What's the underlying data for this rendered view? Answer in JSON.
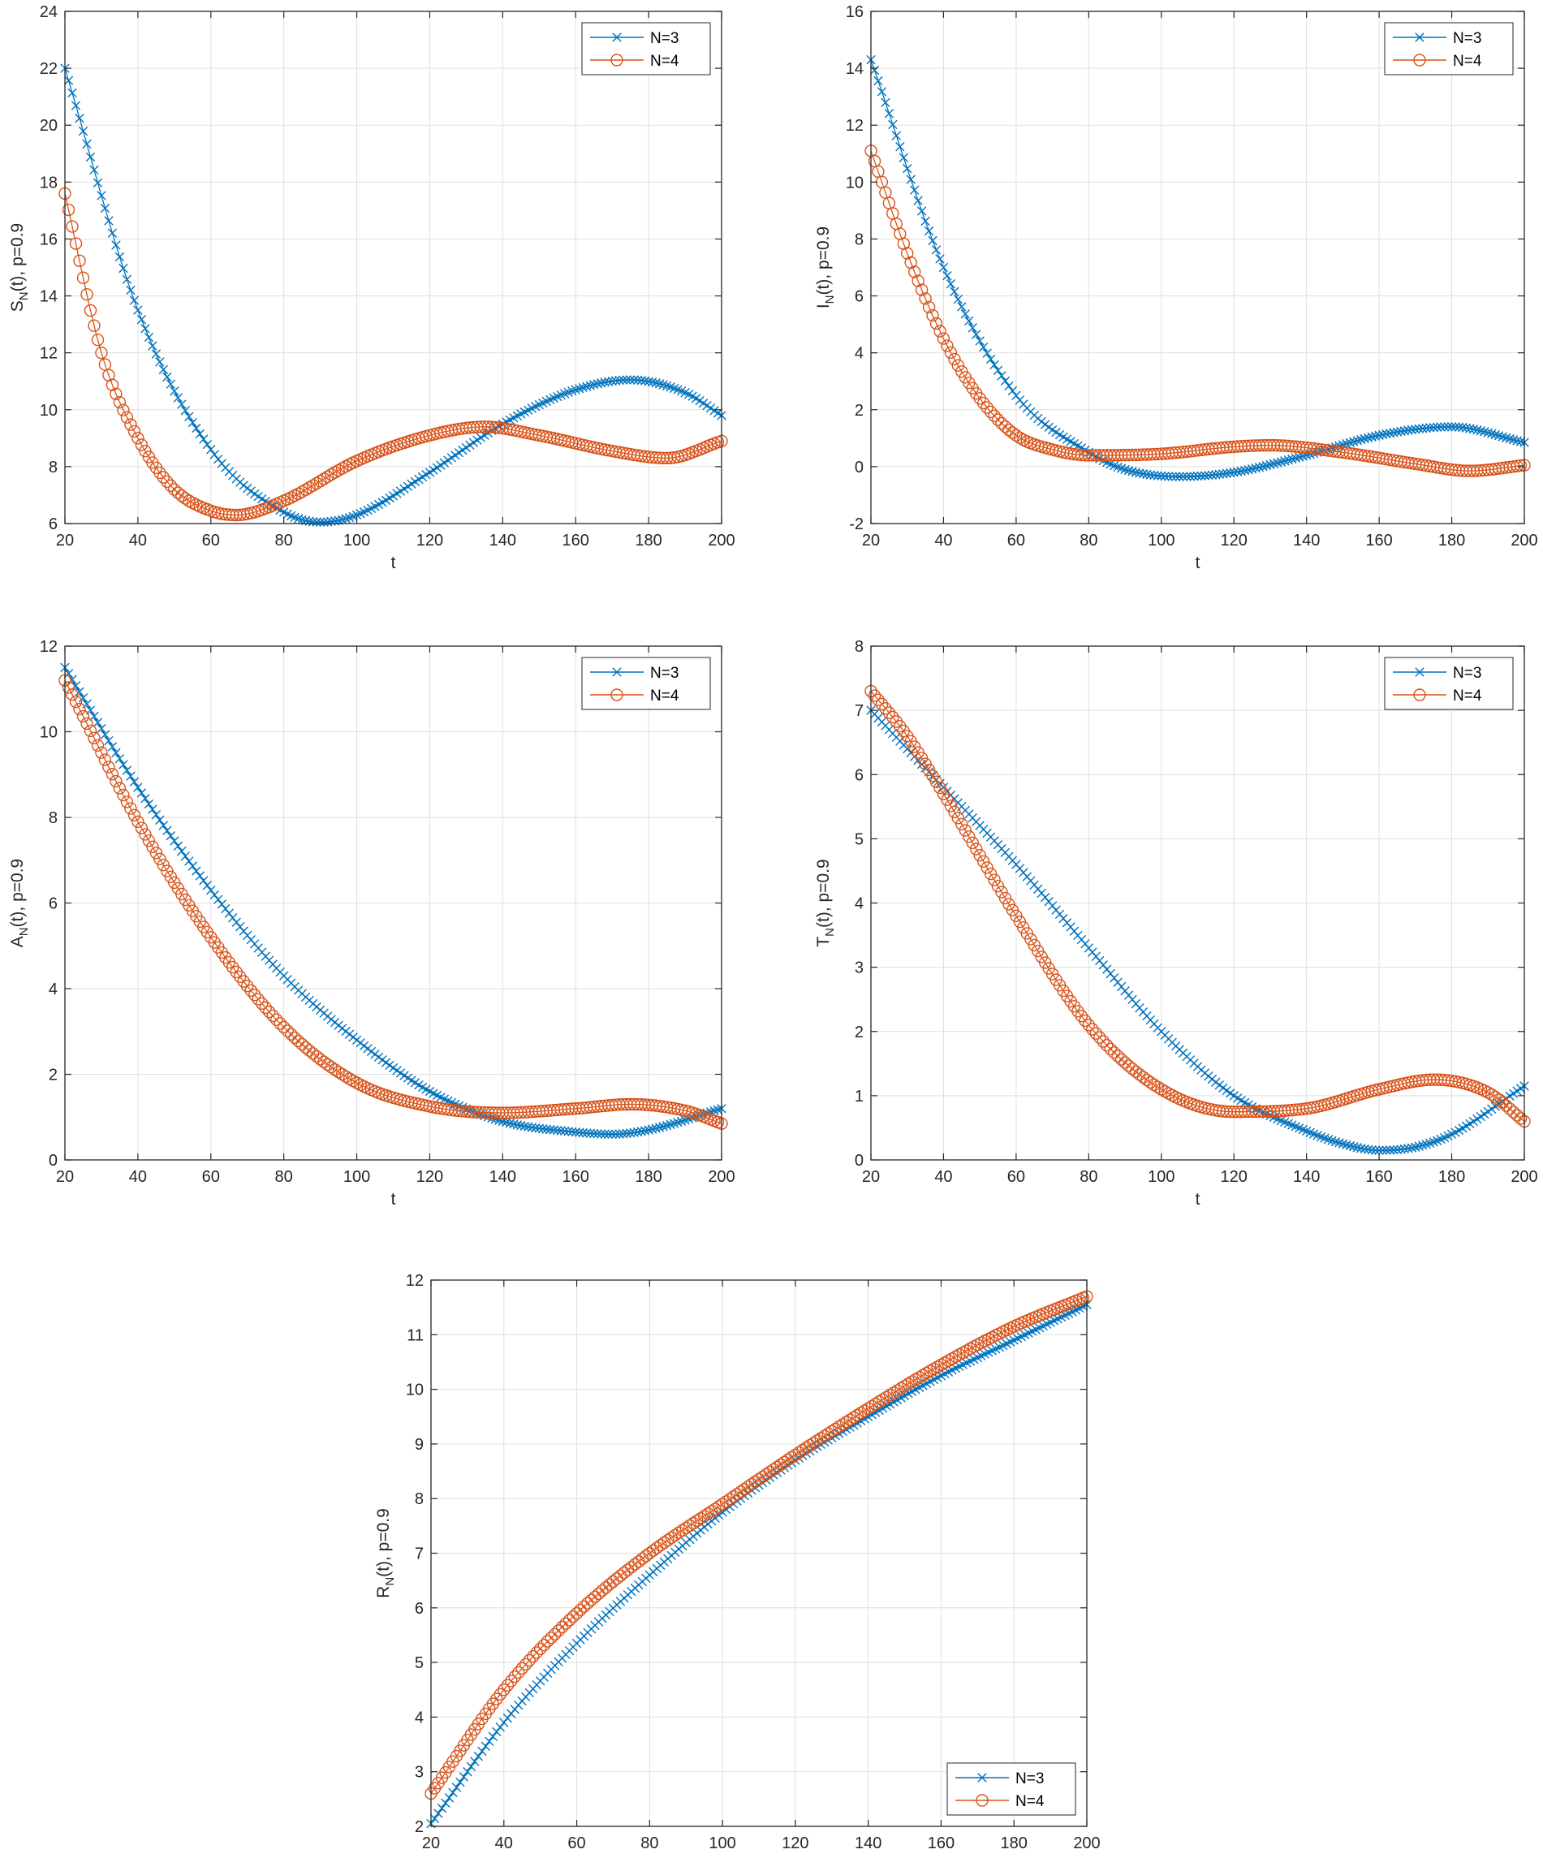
{
  "colors": {
    "n3": "#0072BD",
    "n4": "#D95319",
    "grid": "#dfdfdf",
    "axis": "#262626"
  },
  "chart_data": [
    {
      "id": "S",
      "type": "line",
      "ylabel": "S_N(t), p=0.9",
      "ylabel_main": "S",
      "ylabel_sub": "N",
      "ylabel_rest": "(t), p=0.9",
      "xlabel": "t",
      "xlim": [
        20,
        200
      ],
      "ylim": [
        6,
        24
      ],
      "xticks": [
        "20",
        "40",
        "60",
        "80",
        "100",
        "120",
        "140",
        "160",
        "180",
        "200"
      ],
      "yticks": [
        "6",
        "8",
        "10",
        "12",
        "14",
        "16",
        "18",
        "20",
        "22",
        "24"
      ],
      "grid": true,
      "legend_position": "top-right",
      "series": [
        {
          "name": "N=3",
          "marker": "x-mark",
          "x": [
            20,
            40,
            60,
            80,
            90,
            100,
            120,
            140,
            160,
            175,
            190,
            200
          ],
          "y": [
            22.0,
            13.5,
            8.6,
            6.4,
            6.05,
            6.3,
            7.8,
            9.5,
            10.7,
            11.05,
            10.6,
            9.8
          ]
        },
        {
          "name": "N=4",
          "marker": "circle",
          "x": [
            20,
            30,
            40,
            50,
            60,
            67,
            80,
            100,
            120,
            135,
            150,
            170,
            185,
            200
          ],
          "y": [
            17.6,
            12.0,
            9.0,
            7.2,
            6.45,
            6.3,
            6.8,
            8.2,
            9.1,
            9.4,
            9.1,
            8.55,
            8.3,
            8.9
          ]
        }
      ]
    },
    {
      "id": "I",
      "type": "line",
      "ylabel": "I_N(t), p=0.9",
      "ylabel_main": "I",
      "ylabel_sub": "N",
      "ylabel_rest": "(t), p=0.9",
      "xlabel": "t",
      "xlim": [
        20,
        200
      ],
      "ylim": [
        -2,
        16
      ],
      "xticks": [
        "20",
        "40",
        "60",
        "80",
        "100",
        "120",
        "140",
        "160",
        "180",
        "200"
      ],
      "yticks": [
        "-2",
        "0",
        "2",
        "4",
        "6",
        "8",
        "10",
        "12",
        "14",
        "16"
      ],
      "grid": true,
      "legend_position": "top-right",
      "series": [
        {
          "name": "N=3",
          "marker": "x-mark",
          "x": [
            20,
            40,
            60,
            80,
            90,
            105,
            120,
            140,
            160,
            180,
            200
          ],
          "y": [
            14.3,
            7.0,
            2.5,
            0.5,
            -0.1,
            -0.35,
            -0.2,
            0.4,
            1.1,
            1.4,
            0.85
          ]
        },
        {
          "name": "N=4",
          "marker": "circle",
          "x": [
            20,
            30,
            40,
            50,
            60,
            70,
            80,
            100,
            120,
            130,
            150,
            170,
            185,
            200
          ],
          "y": [
            11.1,
            7.5,
            4.5,
            2.4,
            1.1,
            0.6,
            0.4,
            0.45,
            0.7,
            0.75,
            0.5,
            0.1,
            -0.15,
            0.05
          ]
        }
      ]
    },
    {
      "id": "A",
      "type": "line",
      "ylabel": "A_N(t), p=0.9",
      "ylabel_main": "A",
      "ylabel_sub": "N",
      "ylabel_rest": "(t), p=0.9",
      "xlabel": "t",
      "xlim": [
        20,
        200
      ],
      "ylim": [
        0,
        12
      ],
      "xticks": [
        "20",
        "40",
        "60",
        "80",
        "100",
        "120",
        "140",
        "160",
        "180",
        "200"
      ],
      "yticks": [
        "0",
        "2",
        "4",
        "6",
        "8",
        "10",
        "12"
      ],
      "grid": true,
      "legend_position": "top-right",
      "series": [
        {
          "name": "N=3",
          "marker": "x-mark",
          "x": [
            20,
            40,
            60,
            80,
            100,
            120,
            140,
            160,
            170,
            180,
            200
          ],
          "y": [
            11.5,
            8.7,
            6.3,
            4.3,
            2.8,
            1.6,
            0.9,
            0.65,
            0.6,
            0.7,
            1.2
          ]
        },
        {
          "name": "N=4",
          "marker": "circle",
          "x": [
            20,
            40,
            60,
            80,
            100,
            120,
            140,
            160,
            175,
            190,
            200
          ],
          "y": [
            11.2,
            7.9,
            5.2,
            3.1,
            1.8,
            1.25,
            1.1,
            1.2,
            1.3,
            1.15,
            0.85
          ]
        }
      ]
    },
    {
      "id": "T",
      "type": "line",
      "ylabel": "T_N(t), p=0.9",
      "ylabel_main": "T",
      "ylabel_sub": "N",
      "ylabel_rest": "(t), p=0.9",
      "xlabel": "t",
      "xlim": [
        20,
        200
      ],
      "ylim": [
        0,
        8
      ],
      "xticks": [
        "20",
        "40",
        "60",
        "80",
        "100",
        "120",
        "140",
        "160",
        "180",
        "200"
      ],
      "yticks": [
        "0",
        "1",
        "2",
        "3",
        "4",
        "5",
        "6",
        "7",
        "8"
      ],
      "grid": true,
      "legend_position": "top-right",
      "series": [
        {
          "name": "N=3",
          "marker": "x-mark",
          "x": [
            20,
            40,
            60,
            80,
            100,
            120,
            140,
            150,
            160,
            170,
            180,
            200
          ],
          "y": [
            7.0,
            5.8,
            4.6,
            3.3,
            2.0,
            1.0,
            0.45,
            0.25,
            0.15,
            0.2,
            0.4,
            1.15
          ]
        },
        {
          "name": "N=4",
          "marker": "circle",
          "x": [
            20,
            30,
            40,
            60,
            80,
            100,
            120,
            140,
            160,
            175,
            190,
            200
          ],
          "y": [
            7.3,
            6.6,
            5.7,
            3.8,
            2.1,
            1.1,
            0.75,
            0.8,
            1.1,
            1.25,
            1.05,
            0.6
          ]
        }
      ]
    },
    {
      "id": "R",
      "type": "line",
      "ylabel": "R_N(t), p=0.9",
      "ylabel_main": "R",
      "ylabel_sub": "N",
      "ylabel_rest": "(t), p=0.9",
      "xlabel": "t",
      "xlim": [
        20,
        200
      ],
      "ylim": [
        2,
        12
      ],
      "xticks": [
        "20",
        "40",
        "60",
        "80",
        "100",
        "120",
        "140",
        "160",
        "180",
        "200"
      ],
      "yticks": [
        "2",
        "3",
        "4",
        "5",
        "6",
        "7",
        "8",
        "9",
        "10",
        "11",
        "12"
      ],
      "grid": true,
      "legend_position": "bottom-right",
      "series": [
        {
          "name": "N=3",
          "marker": "x-mark",
          "x": [
            20,
            40,
            60,
            80,
            100,
            120,
            140,
            160,
            180,
            200
          ],
          "y": [
            2.05,
            3.9,
            5.35,
            6.6,
            7.75,
            8.7,
            9.5,
            10.25,
            10.9,
            11.55
          ]
        },
        {
          "name": "N=4",
          "marker": "circle",
          "x": [
            20,
            40,
            60,
            80,
            100,
            120,
            140,
            160,
            180,
            200
          ],
          "y": [
            2.6,
            4.5,
            5.9,
            7.0,
            7.9,
            8.8,
            9.65,
            10.45,
            11.15,
            11.7
          ]
        }
      ]
    }
  ]
}
